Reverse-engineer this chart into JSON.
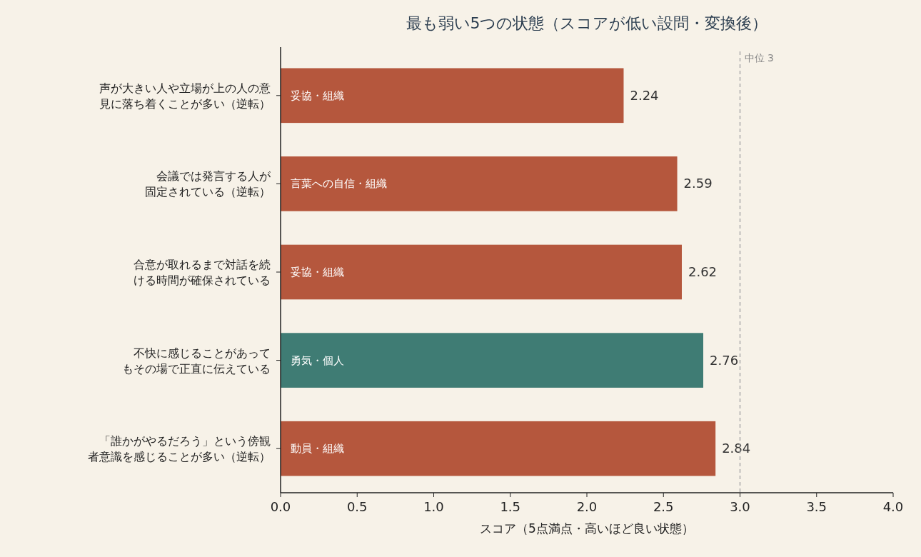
{
  "chart_data": {
    "type": "bar",
    "orientation": "horizontal",
    "title": "最も弱い5つの状態（スコアが低い設問・変換後）",
    "xlabel": "スコア（5点満点・高いほど良い状態）",
    "categories": [
      "声が大きい人や立場が上の人の意見に落ち着くことが多い（逆転）",
      "会議では発言する人が固定されている（逆転）",
      "合意が取れるまで対話を続ける時間が確保されている",
      "不快に感じることがあってもその場で正直に伝えている",
      "「誰かがやるだろう」という傍観者意識を感じることが多い（逆転）"
    ],
    "values": [
      2.24,
      2.59,
      2.62,
      2.76,
      2.84
    ],
    "colors": [
      "#b5573d",
      "#b5573d",
      "#b5573d",
      "#3f7c74",
      "#b5573d"
    ],
    "data_labels": true,
    "xlim": [
      0,
      4
    ],
    "xticks": [
      {
        "value": 0,
        "label": "0.0"
      },
      0.5,
      {
        "value": 1,
        "label": "1.0"
      },
      1.5,
      {
        "value": 2,
        "label": "2.0"
      },
      2.5,
      {
        "value": 3,
        "label": "3.0"
      },
      3.5,
      {
        "value": 4,
        "label": "4.0"
      }
    ],
    "grid": false,
    "ref_lines": [
      {
        "axis": "x",
        "value": 3,
        "label": "中位 3",
        "color": "#aaaaaa",
        "line_style": "dashed"
      }
    ],
    "annotations": [
      "妥協・組織",
      "言葉への自信・組織",
      "妥協・組織",
      "勇気・個人",
      "動員・組織"
    ]
  }
}
